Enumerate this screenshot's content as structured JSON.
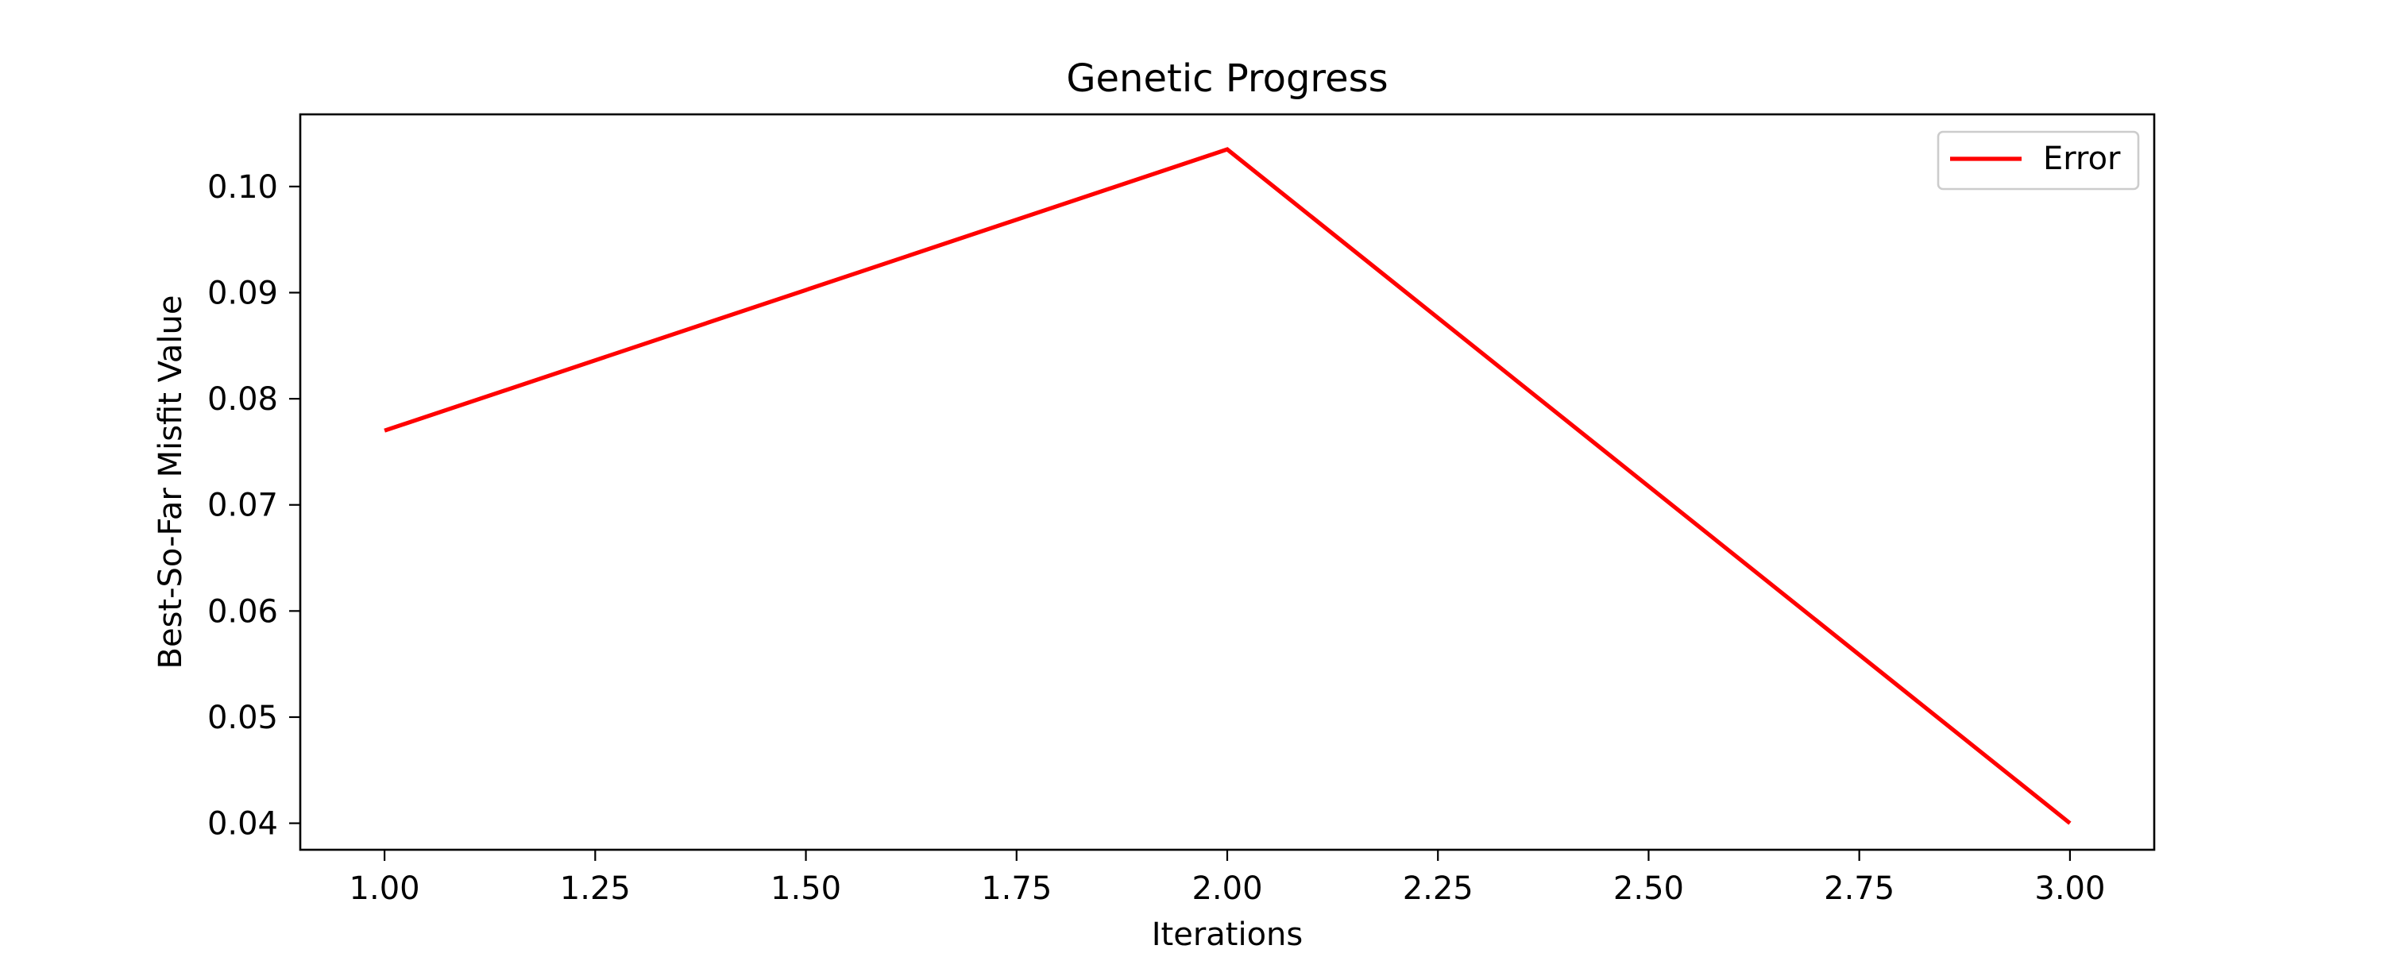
{
  "chart_data": {
    "type": "line",
    "title": "Genetic Progress",
    "xlabel": "Iterations",
    "ylabel": "Best-So-Far Misfit Value",
    "xlim": [
      0.9,
      3.1
    ],
    "ylim": [
      0.0375,
      0.1068
    ],
    "xticks": [
      "1.00",
      "1.25",
      "1.50",
      "1.75",
      "2.00",
      "2.25",
      "2.50",
      "2.75",
      "3.00"
    ],
    "yticks": [
      "0.04",
      "0.05",
      "0.06",
      "0.07",
      "0.08",
      "0.09",
      "0.10"
    ],
    "grid": false,
    "legend_position": "top-right",
    "series": [
      {
        "name": "Error",
        "color": "#ff0000",
        "x": [
          1,
          2,
          3
        ],
        "y": [
          0.077,
          0.1035,
          0.04
        ]
      }
    ]
  }
}
